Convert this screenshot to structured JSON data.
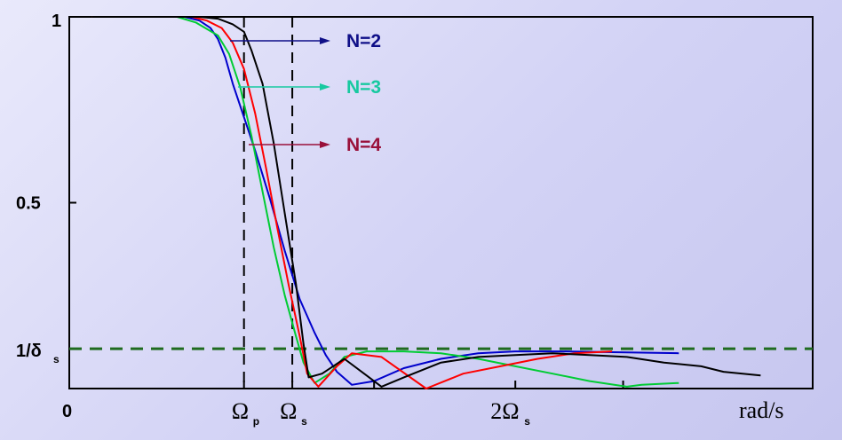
{
  "chart_data": {
    "type": "line",
    "xlabel": "rad/s",
    "ylabel": "",
    "y_ticks": [
      {
        "value": 0,
        "label": "0"
      },
      {
        "value": 0.5,
        "label": "0.5"
      },
      {
        "value": 1,
        "label": "1"
      }
    ],
    "threshold": {
      "label_main": "1/δ",
      "label_sub": "s",
      "value": 0.107,
      "color": "#1f6b1f"
    },
    "x_marks": [
      {
        "value": 0.235,
        "label_main": "Ω",
        "label_sub": "p"
      },
      {
        "value": 0.3,
        "label_main": "Ω",
        "label_sub": "s"
      },
      {
        "value": 0.6,
        "label_main": "2Ω",
        "label_sub": "s"
      }
    ],
    "extra_ticks": [
      0.41,
      0.745
    ],
    "series": [
      {
        "name": "N=2",
        "color": "#0000cc",
        "x": [
          0.03,
          0.155,
          0.175,
          0.19,
          0.2,
          0.21,
          0.22,
          0.235,
          0.25,
          0.27,
          0.29,
          0.31,
          0.33,
          0.345,
          0.36,
          0.38,
          0.41,
          0.45,
          0.5,
          0.55,
          0.6,
          0.66,
          0.72,
          0.82
        ],
        "y": [
          1,
          1,
          0.99,
          0.97,
          0.94,
          0.89,
          0.82,
          0.73,
          0.64,
          0.51,
          0.37,
          0.24,
          0.15,
          0.09,
          0.045,
          0.01,
          0.02,
          0.055,
          0.08,
          0.095,
          0.1,
          0.1,
          0.098,
          0.095
        ]
      },
      {
        "name": "N=3",
        "color": "#00cc33",
        "x": [
          0.03,
          0.145,
          0.17,
          0.2,
          0.215,
          0.23,
          0.245,
          0.26,
          0.275,
          0.29,
          0.305,
          0.315,
          0.33,
          0.35,
          0.37,
          0.4,
          0.45,
          0.5,
          0.55,
          0.6,
          0.65,
          0.7,
          0.75,
          0.77,
          0.82
        ],
        "y": [
          1,
          1,
          0.985,
          0.95,
          0.9,
          0.81,
          0.68,
          0.53,
          0.38,
          0.25,
          0.14,
          0.07,
          0.015,
          0.04,
          0.085,
          0.1,
          0.1,
          0.095,
          0.08,
          0.06,
          0.04,
          0.02,
          0.005,
          0.01,
          0.015
        ]
      },
      {
        "name": "N=4",
        "color": "#ff0000",
        "x": [
          0.03,
          0.165,
          0.185,
          0.205,
          0.22,
          0.235,
          0.25,
          0.265,
          0.28,
          0.295,
          0.31,
          0.32,
          0.335,
          0.36,
          0.38,
          0.42,
          0.48,
          0.53,
          0.58,
          0.63,
          0.68,
          0.73
        ],
        "y": [
          1,
          1,
          0.99,
          0.97,
          0.93,
          0.86,
          0.74,
          0.59,
          0.43,
          0.28,
          0.14,
          0.04,
          0.005,
          0.06,
          0.095,
          0.085,
          0.0,
          0.04,
          0.06,
          0.08,
          0.095,
          0.1
        ]
      },
      {
        "name": "",
        "color": "#000000",
        "x": [
          0.03,
          0.175,
          0.2,
          0.22,
          0.235,
          0.245,
          0.26,
          0.275,
          0.29,
          0.305,
          0.315,
          0.322,
          0.34,
          0.37,
          0.4,
          0.42,
          0.45,
          0.5,
          0.55,
          0.6,
          0.65,
          0.7,
          0.75,
          0.8,
          0.85,
          0.88,
          0.93
        ],
        "y": [
          1,
          1,
          0.995,
          0.98,
          0.96,
          0.91,
          0.82,
          0.66,
          0.47,
          0.28,
          0.12,
          0.03,
          0.04,
          0.08,
          0.035,
          0.005,
          0.03,
          0.07,
          0.085,
          0.09,
          0.095,
          0.09,
          0.085,
          0.07,
          0.06,
          0.045,
          0.035
        ]
      }
    ],
    "legend": [
      {
        "label": "N=2",
        "color": "#0f0f88"
      },
      {
        "label": "N=3",
        "color": "#17c9a0"
      },
      {
        "label": "N=4",
        "color": "#99103a"
      }
    ],
    "xlim": [
      0,
      1
    ],
    "ylim": [
      0,
      1
    ],
    "grid": false
  }
}
